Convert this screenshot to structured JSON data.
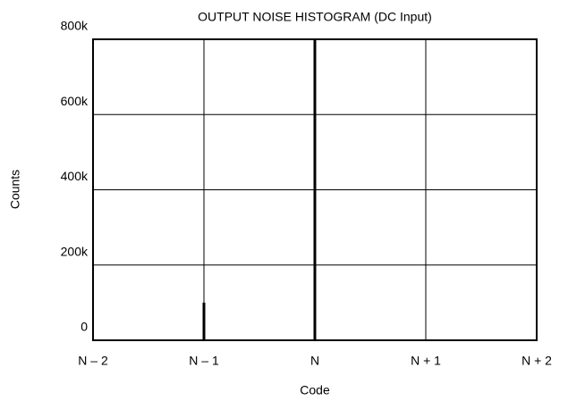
{
  "chart_data": {
    "type": "bar",
    "title": "OUTPUT NOISE HISTOGRAM (DC Input)",
    "x_label": "Code",
    "y_label": "Counts",
    "categories": [
      "N – 2",
      "N – 1",
      "N",
      "N + 1",
      "N + 2"
    ],
    "values": [
      0,
      100000,
      800000,
      0,
      0
    ],
    "color": "#000000",
    "ylim": [
      0,
      800000
    ],
    "yticks": [
      0,
      {
        "value": 200000,
        "label": "200k"
      },
      {
        "value": 400000,
        "label": "400k"
      },
      {
        "value": 600000,
        "label": "600k"
      },
      {
        "value": 800000,
        "label": "800k"
      }
    ],
    "grid": true
  }
}
